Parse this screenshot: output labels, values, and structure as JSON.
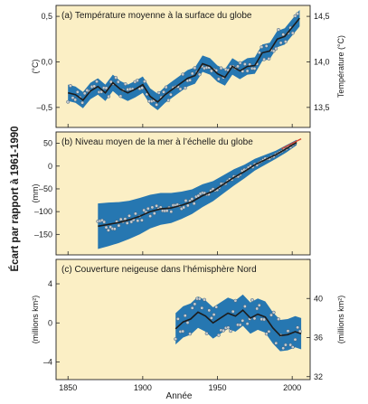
{
  "figure": {
    "shared_ylabel": "Écart par rapport à 1961-1990",
    "xlabel": "Année"
  },
  "colors": {
    "panel_bg": "#fbefc5",
    "band": "#1a70b0",
    "mean_line": "#1c1c1c",
    "points": "#c7cbd0",
    "point_edge": "#3c5e78",
    "trend_red": "#d6452f",
    "frame": "#222222"
  },
  "chart_data": [
    {
      "type": "line",
      "title": "(a) Température moyenne à la surface du globe",
      "ylabel": "(°C)",
      "ylabel_right": "Température (°C)",
      "xlim": [
        1842,
        2012
      ],
      "ylim": [
        -0.72,
        0.62
      ],
      "yticks": [
        -0.5,
        0.0,
        0.5
      ],
      "ytick_labels": [
        "–0,5",
        "0,0",
        "0,5"
      ],
      "yticks_right_values": [
        -0.5,
        0.0,
        0.5
      ],
      "yticks_right_labels": [
        "13,5",
        "14,0",
        "14,5"
      ],
      "band_halfwidth": 0.09,
      "series": [
        {
          "x": [
            1850,
            1855,
            1860,
            1865,
            1870,
            1875,
            1880,
            1885,
            1890,
            1895,
            1900,
            1905,
            1910,
            1915,
            1920,
            1925,
            1930,
            1935,
            1940,
            1945,
            1950,
            1955,
            1960,
            1965,
            1970,
            1975,
            1980,
            1985,
            1990,
            1995,
            2000,
            2005
          ],
          "y": [
            -0.34,
            -0.36,
            -0.42,
            -0.32,
            -0.27,
            -0.34,
            -0.23,
            -0.3,
            -0.34,
            -0.3,
            -0.25,
            -0.38,
            -0.44,
            -0.36,
            -0.3,
            -0.24,
            -0.18,
            -0.15,
            -0.02,
            -0.05,
            -0.13,
            -0.17,
            -0.05,
            -0.1,
            -0.05,
            -0.04,
            0.1,
            0.12,
            0.25,
            0.28,
            0.38,
            0.48
          ]
        }
      ]
    },
    {
      "type": "line",
      "title": "(b) Niveau moyen de la mer à l’échelle du globe",
      "ylabel": "(mm)",
      "xlim": [
        1842,
        2012
      ],
      "ylim": [
        -195,
        75
      ],
      "yticks": [
        -150,
        -100,
        -50,
        0,
        50
      ],
      "ytick_labels": [
        "–150",
        "–100",
        "–50",
        "0",
        "50"
      ],
      "band_halfwidth": [
        50,
        48,
        45,
        42,
        40,
        37,
        35,
        33,
        30,
        27,
        25,
        22,
        20,
        18,
        15,
        13,
        11,
        9,
        8,
        6
      ],
      "series": [
        {
          "x": [
            1870,
            1877,
            1884,
            1891,
            1898,
            1905,
            1912,
            1919,
            1926,
            1933,
            1940,
            1947,
            1954,
            1961,
            1968,
            1975,
            1982,
            1989,
            1996,
            2003
          ],
          "y": [
            -132,
            -128,
            -124,
            -118,
            -110,
            -100,
            -94,
            -92,
            -86,
            -78,
            -65,
            -55,
            -40,
            -25,
            -12,
            3,
            14,
            25,
            38,
            52
          ]
        },
        {
          "name": "",
          "x": [
            1993,
            2000,
            2006
          ],
          "y": [
            38,
            50,
            60
          ]
        }
      ]
    },
    {
      "type": "line",
      "title": "(c) Couverture neigeuse dans l’hémisphère Nord",
      "ylabel": "(millions km²)",
      "ylabel_right": "(millions km²)",
      "xlim": [
        1842,
        2012
      ],
      "ylim": [
        -5.8,
        6.5
      ],
      "yticks": [
        -4,
        0,
        4
      ],
      "ytick_labels": [
        "–4",
        "0",
        "4"
      ],
      "yticks_right_values": [
        -5.5,
        -1.5,
        2.5,
        6.5
      ],
      "yticks_right_labels": [
        "32",
        "36",
        "40",
        ""
      ],
      "band_halfwidth": 1.6,
      "series": [
        {
          "x": [
            1922,
            1927,
            1932,
            1937,
            1942,
            1947,
            1952,
            1957,
            1962,
            1967,
            1972,
            1977,
            1982,
            1987,
            1992,
            1997,
            2002,
            2006
          ],
          "y": [
            -0.6,
            0.1,
            0.4,
            1.1,
            0.7,
            0.0,
            0.5,
            1.0,
            0.7,
            1.3,
            0.5,
            0.9,
            0.6,
            -0.5,
            -1.3,
            -1.2,
            -0.9,
            -1.1
          ]
        }
      ]
    }
  ],
  "x_ticks": [
    1850,
    1900,
    1950,
    2000
  ],
  "x_tick_labels": [
    "1850",
    "1900",
    "1950",
    "2000"
  ]
}
